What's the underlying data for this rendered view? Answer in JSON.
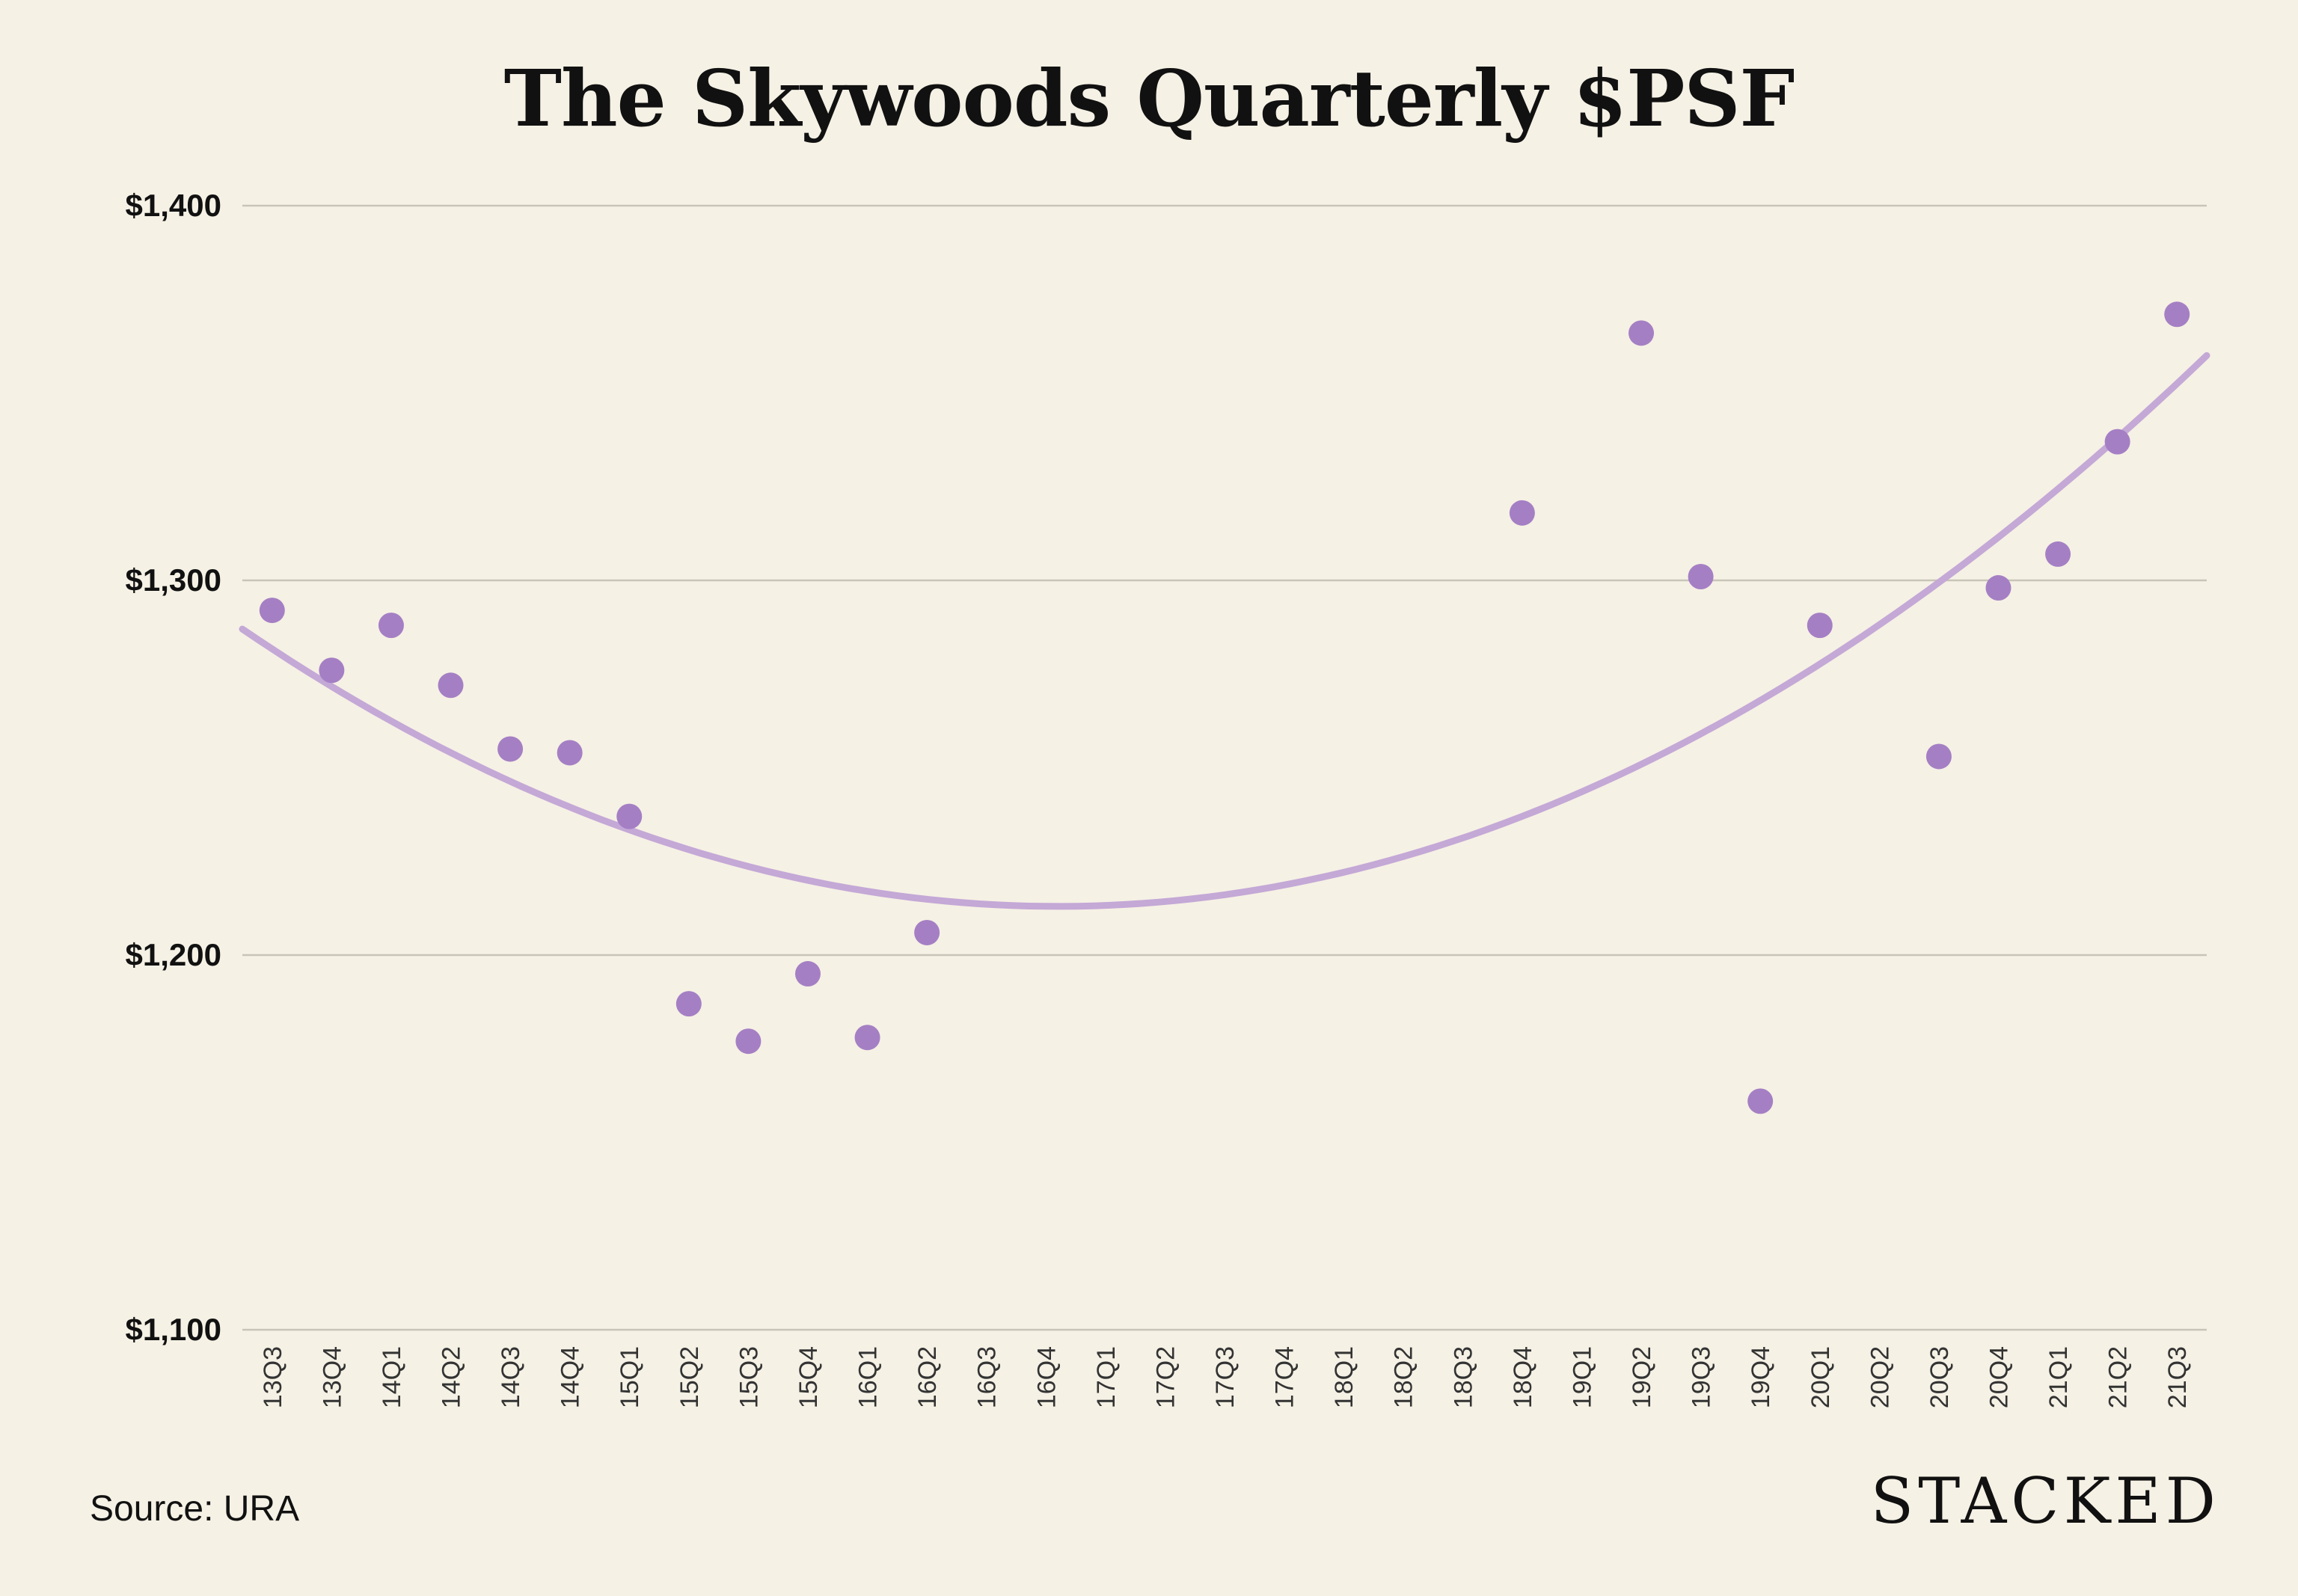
{
  "page": {
    "source": "Source: URA",
    "brand": "STACKED"
  },
  "colors": {
    "background": "#f5f1e5",
    "point": "#a57fc4",
    "trend": "#c4a8d6",
    "grid": "#c8c4b8"
  },
  "chart_data": {
    "type": "scatter",
    "title": "The Skywoods Quarterly $PSF",
    "xlabel": "",
    "ylabel": "",
    "ylim": [
      1100,
      1400
    ],
    "yticks": [
      1100,
      1200,
      1300,
      1400
    ],
    "ytick_labels": [
      "$1,100",
      "$1,200",
      "$1,300",
      "$1,400"
    ],
    "grid": true,
    "categories": [
      "13Q3",
      "13Q4",
      "14Q1",
      "14Q2",
      "14Q3",
      "14Q4",
      "15Q1",
      "15Q2",
      "15Q3",
      "15Q4",
      "16Q1",
      "16Q2",
      "16Q3",
      "16Q4",
      "17Q1",
      "17Q2",
      "17Q3",
      "17Q4",
      "18Q1",
      "18Q2",
      "18Q3",
      "18Q4",
      "19Q1",
      "19Q2",
      "19Q3",
      "19Q4",
      "20Q1",
      "20Q2",
      "20Q3",
      "20Q4",
      "21Q1",
      "21Q2",
      "21Q3"
    ],
    "series": [
      {
        "values": [
          1292,
          1276,
          1288,
          1272,
          1255,
          1254,
          1237,
          1187,
          1177,
          1195,
          1178,
          1206,
          null,
          null,
          null,
          null,
          null,
          null,
          null,
          null,
          null,
          1318,
          null,
          1366,
          1301,
          null,
          1288,
          null,
          1253,
          1298,
          1307,
          1337,
          1371
        ]
      }
    ],
    "outliers_note_values": {
      "19Q4": 1161
    },
    "trendline": {
      "type": "polynomial",
      "degree": 2,
      "start": 1287,
      "minimum": 1213,
      "minimum_at": "16Q4",
      "end": 1360
    }
  }
}
